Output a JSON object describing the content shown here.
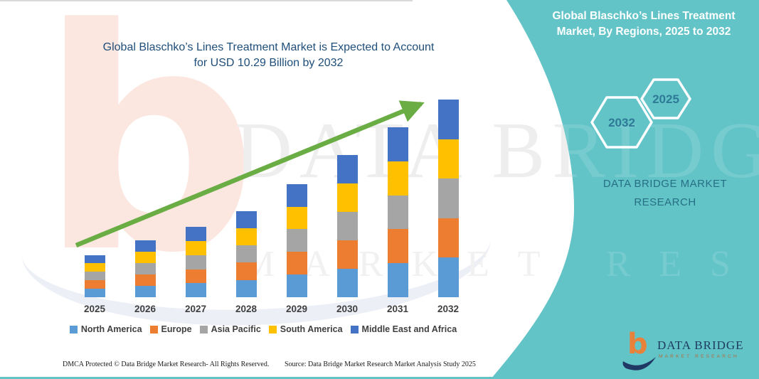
{
  "header": {
    "title_line1": "Global Blaschko’s Lines Treatment Market is Expected to Account",
    "title_line2": "for USD 10.29 Billion by 2032"
  },
  "side_panel": {
    "title_line1": "Global Blaschko’s Lines Treatment",
    "title_line2": "Market, By Regions, 2025 to 2032",
    "hexagons": {
      "back_label": "2032",
      "front_label": "2025"
    },
    "brand": {
      "line1": "DATA BRIDGE MARKET",
      "line2": "RESEARCH"
    },
    "logo": {
      "monogram": "b",
      "name": "DATA BRIDGE",
      "subtitle": "MARKET RESEARCH"
    },
    "accent_color": "#63c4c8"
  },
  "watermark": {
    "monogram": "b",
    "brand_line1": "DATA BRIDGE",
    "brand_line2": "MARKET RESEARCH"
  },
  "chart_data": {
    "type": "bar",
    "stacked": true,
    "title": "Global Blaschko’s Lines Treatment Market is Expected to Account for USD 10.29 Billion by 2032",
    "unit": "USD Billion",
    "categories": [
      "2025",
      "2026",
      "2027",
      "2028",
      "2029",
      "2030",
      "2031",
      "2032"
    ],
    "series": [
      {
        "name": "North America",
        "color": "#5b9bd5",
        "values": [
          0.44,
          0.59,
          0.73,
          0.9,
          1.18,
          1.48,
          1.77,
          2.06
        ]
      },
      {
        "name": "Europe",
        "color": "#ed7d31",
        "values": [
          0.44,
          0.59,
          0.73,
          0.9,
          1.18,
          1.48,
          1.77,
          2.06
        ]
      },
      {
        "name": "Asia Pacific",
        "color": "#a5a5a5",
        "values": [
          0.44,
          0.59,
          0.73,
          0.9,
          1.18,
          1.48,
          1.77,
          2.06
        ]
      },
      {
        "name": "South America",
        "color": "#ffc000",
        "values": [
          0.44,
          0.59,
          0.73,
          0.9,
          1.18,
          1.48,
          1.77,
          2.06
        ]
      },
      {
        "name": "Middle East and Africa",
        "color": "#4472c4",
        "values": [
          0.44,
          0.59,
          0.73,
          0.9,
          1.18,
          1.48,
          1.77,
          2.05
        ]
      }
    ],
    "totals": [
      2.2,
      2.95,
      3.65,
      4.5,
      5.9,
      7.4,
      8.85,
      10.29
    ],
    "ylim": [
      0,
      10.29
    ],
    "grid": false,
    "legend_position": "bottom",
    "trend_arrow": true,
    "trend_arrow_color": "#6bad45"
  },
  "footer": {
    "left": "DMCA Protected © Data Bridge Market Research-  All Rights Reserved.",
    "right": "Source: Data Bridge Market Research  Market Analysis Study 2025"
  }
}
